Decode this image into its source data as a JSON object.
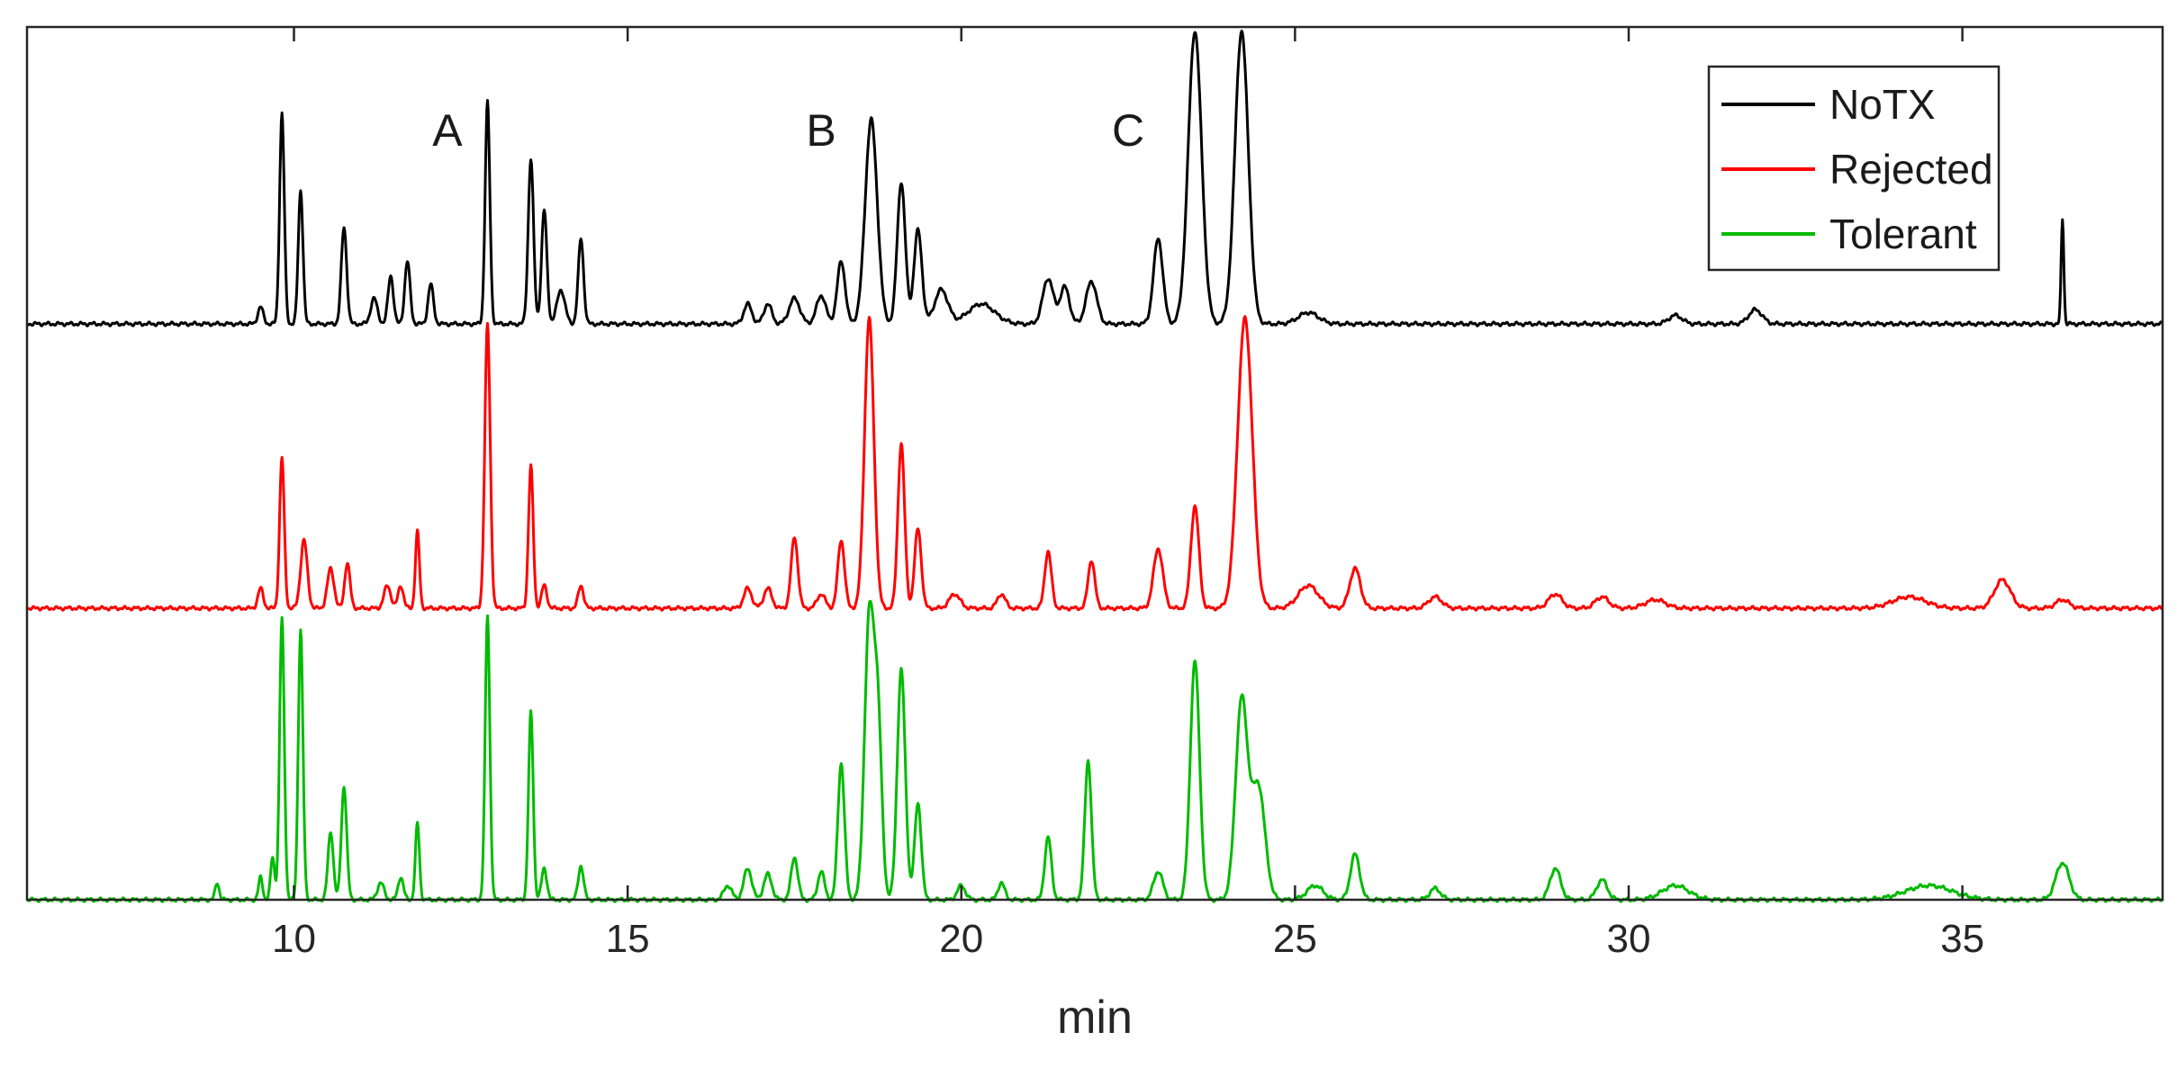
{
  "chart_data": {
    "type": "line",
    "title": "",
    "xlabel": "min",
    "ylabel": "",
    "xlim": [
      6,
      38
    ],
    "xticks": [
      10,
      15,
      20,
      25,
      30,
      35
    ],
    "xtick_labels": [
      "10",
      "15",
      "20",
      "25",
      "30",
      "35"
    ],
    "grid": false,
    "legend_position": "top-right",
    "annotations": [
      {
        "text": "A",
        "x": 12.3
      },
      {
        "text": "B",
        "x": 17.9
      },
      {
        "text": "C",
        "x": 22.5
      }
    ],
    "series": [
      {
        "name": "NoTX",
        "color": "#000000",
        "peaks": [
          [
            9.5,
            0.06,
            0.04
          ],
          [
            9.82,
            0.74,
            0.035
          ],
          [
            10.1,
            0.47,
            0.035
          ],
          [
            10.75,
            0.34,
            0.04
          ],
          [
            11.2,
            0.09,
            0.05
          ],
          [
            11.45,
            0.17,
            0.04
          ],
          [
            11.7,
            0.22,
            0.04
          ],
          [
            12.05,
            0.14,
            0.04
          ],
          [
            12.9,
            0.78,
            0.035
          ],
          [
            13.55,
            0.58,
            0.04
          ],
          [
            13.75,
            0.4,
            0.04
          ],
          [
            14.0,
            0.12,
            0.06
          ],
          [
            14.3,
            0.3,
            0.04
          ],
          [
            16.8,
            0.07,
            0.06
          ],
          [
            17.1,
            0.07,
            0.06
          ],
          [
            17.5,
            0.09,
            0.08
          ],
          [
            17.9,
            0.1,
            0.07
          ],
          [
            18.2,
            0.22,
            0.06
          ],
          [
            18.65,
            0.72,
            0.09
          ],
          [
            19.1,
            0.5,
            0.06
          ],
          [
            19.35,
            0.33,
            0.06
          ],
          [
            19.7,
            0.12,
            0.1
          ],
          [
            20.3,
            0.07,
            0.2
          ],
          [
            21.3,
            0.16,
            0.08
          ],
          [
            21.55,
            0.13,
            0.07
          ],
          [
            21.95,
            0.15,
            0.08
          ],
          [
            22.95,
            0.3,
            0.07
          ],
          [
            23.5,
            1.03,
            0.1
          ],
          [
            24.2,
            1.03,
            0.1
          ],
          [
            25.2,
            0.04,
            0.15
          ],
          [
            30.7,
            0.03,
            0.1
          ],
          [
            31.9,
            0.05,
            0.1
          ],
          [
            36.5,
            0.37,
            0.02
          ]
        ]
      },
      {
        "name": "Rejected",
        "color": "#ff0000",
        "peaks": [
          [
            9.5,
            0.07,
            0.04
          ],
          [
            9.82,
            0.53,
            0.035
          ],
          [
            10.15,
            0.24,
            0.05
          ],
          [
            10.55,
            0.14,
            0.05
          ],
          [
            10.8,
            0.16,
            0.04
          ],
          [
            11.4,
            0.08,
            0.05
          ],
          [
            11.6,
            0.08,
            0.04
          ],
          [
            11.85,
            0.27,
            0.03
          ],
          [
            12.9,
            1.0,
            0.04
          ],
          [
            13.55,
            0.5,
            0.035
          ],
          [
            13.75,
            0.08,
            0.04
          ],
          [
            14.3,
            0.08,
            0.04
          ],
          [
            16.8,
            0.07,
            0.06
          ],
          [
            17.1,
            0.07,
            0.06
          ],
          [
            17.5,
            0.25,
            0.05
          ],
          [
            17.9,
            0.05,
            0.06
          ],
          [
            18.2,
            0.24,
            0.05
          ],
          [
            18.62,
            1.02,
            0.07
          ],
          [
            19.1,
            0.58,
            0.05
          ],
          [
            19.35,
            0.28,
            0.05
          ],
          [
            19.9,
            0.05,
            0.08
          ],
          [
            20.6,
            0.05,
            0.06
          ],
          [
            21.3,
            0.2,
            0.05
          ],
          [
            21.95,
            0.17,
            0.05
          ],
          [
            22.95,
            0.21,
            0.07
          ],
          [
            23.5,
            0.36,
            0.06
          ],
          [
            24.25,
            1.02,
            0.11
          ],
          [
            25.2,
            0.08,
            0.15
          ],
          [
            25.9,
            0.14,
            0.08
          ],
          [
            27.1,
            0.04,
            0.1
          ],
          [
            28.9,
            0.05,
            0.1
          ],
          [
            29.6,
            0.04,
            0.1
          ],
          [
            30.4,
            0.03,
            0.15
          ],
          [
            34.2,
            0.04,
            0.25
          ],
          [
            35.6,
            0.1,
            0.12
          ],
          [
            36.5,
            0.03,
            0.1
          ]
        ]
      },
      {
        "name": "Tolerant",
        "color": "#00bb00",
        "peaks": [
          [
            8.85,
            0.06,
            0.03
          ],
          [
            9.5,
            0.08,
            0.03
          ],
          [
            9.68,
            0.15,
            0.03
          ],
          [
            9.82,
            0.99,
            0.035
          ],
          [
            10.1,
            0.95,
            0.035
          ],
          [
            10.55,
            0.24,
            0.04
          ],
          [
            10.75,
            0.4,
            0.04
          ],
          [
            11.3,
            0.06,
            0.05
          ],
          [
            11.6,
            0.08,
            0.04
          ],
          [
            11.85,
            0.27,
            0.03
          ],
          [
            12.9,
            1.0,
            0.035
          ],
          [
            13.55,
            0.66,
            0.035
          ],
          [
            13.75,
            0.11,
            0.04
          ],
          [
            14.3,
            0.12,
            0.04
          ],
          [
            16.5,
            0.05,
            0.06
          ],
          [
            16.8,
            0.11,
            0.06
          ],
          [
            17.1,
            0.09,
            0.06
          ],
          [
            17.5,
            0.15,
            0.05
          ],
          [
            17.9,
            0.1,
            0.05
          ],
          [
            18.2,
            0.48,
            0.05
          ],
          [
            18.62,
            0.98,
            0.07
          ],
          [
            18.75,
            0.6,
            0.06
          ],
          [
            19.1,
            0.81,
            0.06
          ],
          [
            19.35,
            0.34,
            0.05
          ],
          [
            20.0,
            0.05,
            0.06
          ],
          [
            20.6,
            0.06,
            0.05
          ],
          [
            21.3,
            0.22,
            0.05
          ],
          [
            21.9,
            0.49,
            0.05
          ],
          [
            22.95,
            0.1,
            0.07
          ],
          [
            23.5,
            0.84,
            0.07
          ],
          [
            24.2,
            0.7,
            0.09
          ],
          [
            24.45,
            0.4,
            0.1
          ],
          [
            25.3,
            0.05,
            0.12
          ],
          [
            25.9,
            0.16,
            0.07
          ],
          [
            27.1,
            0.04,
            0.08
          ],
          [
            28.9,
            0.11,
            0.08
          ],
          [
            29.6,
            0.07,
            0.08
          ],
          [
            30.7,
            0.05,
            0.2
          ],
          [
            34.5,
            0.05,
            0.35
          ],
          [
            36.5,
            0.13,
            0.1
          ]
        ]
      }
    ]
  }
}
